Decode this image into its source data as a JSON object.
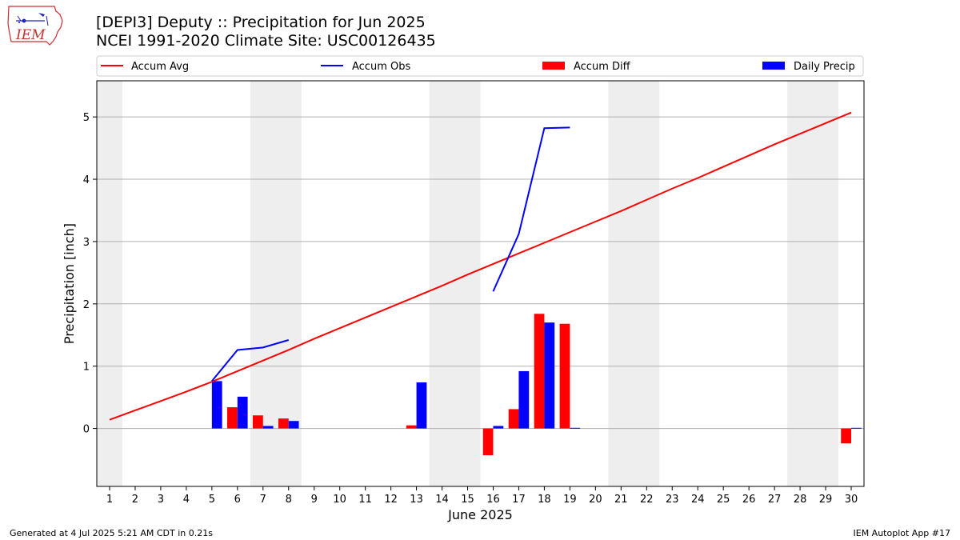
{
  "header": {
    "title_line1": "[DEPI3] Deputy :: Precipitation for Jun 2025",
    "title_line2": "NCEI 1991-2020 Climate Site: USC00126435",
    "logo_text": "IEM"
  },
  "footer": {
    "left": "Generated at 4 Jul 2025 5:21 AM CDT in 0.21s",
    "right": "IEM Autoplot App #17"
  },
  "colors": {
    "avg": "#ff0000",
    "obs": "#0000ff",
    "diff": "#ff0000",
    "daily": "#0000ff",
    "weekend": "#eeeeee",
    "grid": "#b0b0b0"
  },
  "chart_data": {
    "type": "bar",
    "xlabel": "June 2025",
    "ylabel": "Precipitation [inch]",
    "xlim": [
      0.5,
      30.5
    ],
    "ylim": [
      -0.93,
      5.58
    ],
    "yticks": [
      0,
      1,
      2,
      3,
      4,
      5
    ],
    "grid": true,
    "legend_position": "top",
    "x": [
      1,
      2,
      3,
      4,
      5,
      6,
      7,
      8,
      9,
      10,
      11,
      12,
      13,
      14,
      15,
      16,
      17,
      18,
      19,
      20,
      21,
      22,
      23,
      24,
      25,
      26,
      27,
      28,
      29,
      30
    ],
    "weekend_spans": [
      [
        0.5,
        1.5
      ],
      [
        6.5,
        8.5
      ],
      [
        13.5,
        15.5
      ],
      [
        20.5,
        22.5
      ],
      [
        27.5,
        29.5
      ]
    ],
    "legend": [
      "Accum Avg",
      "Accum Obs",
      "Accum Diff",
      "Daily Precip"
    ],
    "series": [
      {
        "name": "Accum Avg",
        "kind": "line",
        "x": [
          1,
          2,
          3,
          4,
          5,
          6,
          7,
          8,
          9,
          10,
          11,
          12,
          13,
          14,
          15,
          16,
          17,
          18,
          19,
          20,
          21,
          22,
          23,
          24,
          25,
          26,
          27,
          28,
          29,
          30
        ],
        "values": [
          0.14,
          0.29,
          0.44,
          0.59,
          0.75,
          0.92,
          1.09,
          1.26,
          1.44,
          1.61,
          1.78,
          1.95,
          2.12,
          2.29,
          2.47,
          2.64,
          2.81,
          2.98,
          3.15,
          3.32,
          3.49,
          3.67,
          3.85,
          4.02,
          4.2,
          4.38,
          4.56,
          4.73,
          4.9,
          5.07
        ]
      },
      {
        "name": "Accum Obs",
        "kind": "line",
        "segments": [
          {
            "x": [
              5,
              6,
              7,
              8
            ],
            "values": [
              0.76,
              1.26,
              1.3,
              1.42
            ]
          },
          {
            "x": [
              16,
              17,
              18,
              19
            ],
            "values": [
              2.2,
              3.12,
              4.82,
              4.83
            ]
          }
        ]
      },
      {
        "name": "Accum Diff",
        "kind": "bar",
        "x": [
          6,
          7,
          8,
          13,
          16,
          17,
          18,
          19,
          30
        ],
        "values": [
          0.34,
          0.21,
          0.16,
          0.05,
          -0.43,
          0.31,
          1.84,
          1.68,
          -0.24
        ]
      },
      {
        "name": "Daily Precip",
        "kind": "bar",
        "x": [
          5,
          6,
          7,
          8,
          13,
          16,
          17,
          18,
          19,
          30
        ],
        "values": [
          0.76,
          0.51,
          0.04,
          0.12,
          0.74,
          0.04,
          0.92,
          1.7,
          0.01,
          0.01
        ]
      }
    ]
  }
}
